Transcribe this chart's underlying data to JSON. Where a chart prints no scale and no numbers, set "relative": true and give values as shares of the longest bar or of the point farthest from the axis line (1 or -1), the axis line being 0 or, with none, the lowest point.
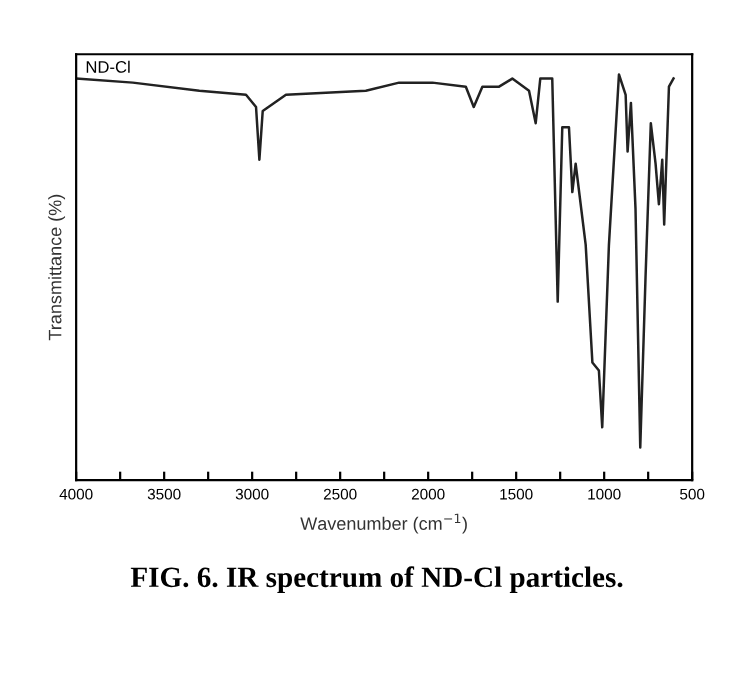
{
  "chart_data": {
    "type": "line",
    "relative": true,
    "title": "FIG. 6. IR spectrum of ND-Cl particles.",
    "xlabel": "Wavenumber (cm$^{−1}$)",
    "ylabel": "Transmittance (%)",
    "annotations": [
      "ND-Cl"
    ],
    "xlim": [
      4000,
      500
    ],
    "xticks": [
      4000,
      {
        "value": 3750,
        "label": null
      },
      3500,
      {
        "value": 3250,
        "label": null
      },
      3000,
      {
        "value": 2750,
        "label": null
      },
      2500,
      {
        "value": 2250,
        "label": null
      },
      2000,
      {
        "value": 1750,
        "label": null
      },
      1500,
      {
        "value": 1250,
        "label": null
      },
      1000,
      {
        "value": 750,
        "label": null
      },
      500
    ],
    "grid": false,
    "legend": false,
    "marker": "none",
    "line_style": "solid",
    "x": [
      4000,
      3678,
      3300,
      3035,
      2978,
      2959,
      2940,
      2808,
      2354,
      2165,
      1976,
      1786,
      1741,
      1692,
      1597,
      1522,
      1427,
      1389,
      1363,
      1295,
      1264,
      1238,
      1200,
      1181,
      1162,
      1105,
      1067,
      1030,
      1011,
      973,
      916,
      878,
      867,
      848,
      822,
      795,
      765,
      735,
      708,
      689,
      670,
      659,
      632,
      606
    ],
    "series": [
      {
        "color": "#222222",
        "values": [
          0.99,
          0.98,
          0.96,
          0.95,
          0.92,
          0.79,
          0.91,
          0.95,
          0.96,
          0.98,
          0.98,
          0.97,
          0.92,
          0.97,
          0.97,
          0.99,
          0.96,
          0.88,
          0.99,
          0.99,
          0.44,
          0.87,
          0.87,
          0.71,
          0.78,
          0.58,
          0.29,
          0.27,
          0.13,
          0.58,
          1.0,
          0.95,
          0.81,
          0.93,
          0.67,
          0.08,
          0.5,
          0.88,
          0.78,
          0.68,
          0.79,
          0.63,
          0.97,
          0.99
        ]
      }
    ]
  }
}
